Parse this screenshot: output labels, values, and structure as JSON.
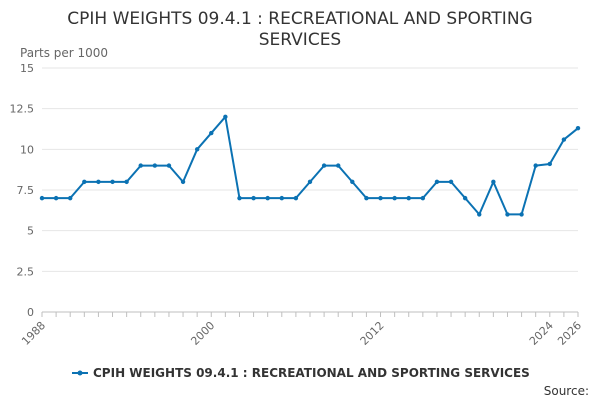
{
  "chart_data": {
    "type": "line",
    "title_lines": [
      "CPIH WEIGHTS 09.4.1 : RECREATIONAL AND SPORTING",
      "SERVICES"
    ],
    "ylabel": "Parts per 1000",
    "xlabel": "",
    "ylim": [
      0,
      15
    ],
    "xlim": [
      1988,
      2026
    ],
    "y_ticks": [
      "0",
      "2.5",
      "5",
      "7.5",
      "10",
      "12.5",
      "15"
    ],
    "x_ticks": [
      "1988",
      "2000",
      "2012",
      "2024",
      "2026"
    ],
    "grid": true,
    "legend_placement": "bottom",
    "color": "#0b72b3",
    "series": [
      {
        "name": "CPIH WEIGHTS 09.4.1 : RECREATIONAL AND SPORTING SERVICES",
        "x": [
          1988,
          1989,
          1990,
          1991,
          1992,
          1993,
          1994,
          1995,
          1996,
          1997,
          1998,
          1999,
          2000,
          2001,
          2002,
          2003,
          2004,
          2005,
          2006,
          2007,
          2008,
          2009,
          2010,
          2011,
          2012,
          2013,
          2014,
          2015,
          2016,
          2017,
          2018,
          2019,
          2020,
          2021,
          2022,
          2023,
          2024,
          2025,
          2026
        ],
        "values": [
          7,
          7,
          7,
          8,
          8,
          8,
          8,
          9,
          9,
          9,
          8,
          10,
          11,
          12,
          7,
          7,
          7,
          7,
          7,
          8,
          9,
          9,
          8,
          7,
          7,
          7,
          7,
          7,
          8,
          8,
          7,
          6,
          8,
          6,
          6,
          9,
          9.1,
          10.6,
          11.3
        ]
      }
    ]
  },
  "source_label": "Source:"
}
